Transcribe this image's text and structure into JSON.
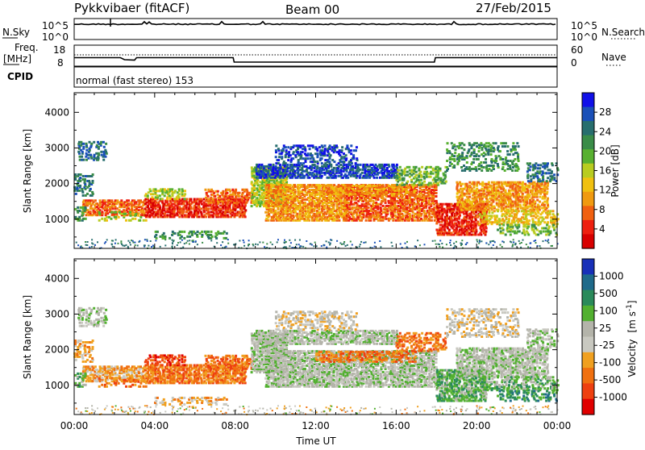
{
  "header": {
    "station": "Pykkvibaer (fitACF)",
    "beam": "Beam 00",
    "date": "27/Feb/2015"
  },
  "strip_nsky": {
    "left_label": "N.Sky",
    "left_ticks": [
      "10^5",
      "10^0"
    ],
    "right_label": "N.Search",
    "right_ticks": [
      "10^5",
      "10^0"
    ]
  },
  "strip_freq": {
    "left_label_1": "Freq.",
    "left_label_2": "[MHz]",
    "left_ticks": [
      "18",
      "8"
    ],
    "right_label": "Nave",
    "right_ticks": [
      "60",
      "0"
    ]
  },
  "strip_cpid": {
    "label": "CPID",
    "text": "normal (fast stereo) 153"
  },
  "chart_data": [
    {
      "type": "heatmap",
      "panel": "power",
      "ylabel": "Slant Range [km]",
      "ylim": [
        180,
        4550
      ],
      "yticks": [
        1000,
        2000,
        3000,
        4000
      ],
      "xlim": [
        "00:00",
        "24:00"
      ],
      "colorbar": {
        "label": "Power [dB]",
        "ticks": [
          "28",
          "24",
          "20",
          "16",
          "12",
          "8",
          "4"
        ],
        "colors": [
          "#1010e8",
          "#1a50b8",
          "#286e6e",
          "#3a8c48",
          "#58b030",
          "#b8cc20",
          "#f0c010",
          "#f09a10",
          "#f06010",
          "#ee2010",
          "#d80000"
        ]
      }
    },
    {
      "type": "heatmap",
      "panel": "velocity",
      "ylabel": "Slant Range [km]",
      "ylim": [
        180,
        4550
      ],
      "yticks": [
        1000,
        2000,
        3000,
        4000
      ],
      "xlim": [
        "00:00",
        "24:00"
      ],
      "xticks": [
        "00:00",
        "04:00",
        "08:00",
        "12:00",
        "16:00",
        "20:00",
        "00:00"
      ],
      "xlabel": "Time UT",
      "colorbar": {
        "label": "Velocity",
        "unit": "[m s",
        "unit_sup": "-1",
        "unit_end": "]",
        "ticks": [
          "1000",
          "500",
          "100",
          "25",
          "-25",
          "-100",
          "-500",
          "-1000"
        ],
        "colors": [
          "#1830b8",
          "#1f6a8a",
          "#2a8a5a",
          "#52b030",
          "#b4b4aa",
          "#c8c8c0",
          "#f0a020",
          "#f07010",
          "#ee4010",
          "#e00000"
        ]
      }
    }
  ]
}
